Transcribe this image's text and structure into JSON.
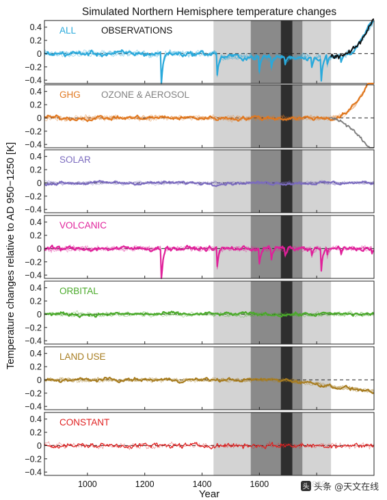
{
  "chart_data": {
    "type": "line",
    "title": "Simulated Northern Hemisphere temperature changes",
    "xlabel": "Year",
    "ylabel": "Temperature changes relative to AD 950−1250  [K]",
    "xlim": [
      850,
      2000
    ],
    "x_ticks": [
      "1000",
      "1200",
      "1400",
      "1600",
      "1800"
    ],
    "ylim": [
      -0.45,
      0.5
    ],
    "y_ticks": [
      "0.4",
      "0.2",
      "0",
      "−0.2",
      "−0.4"
    ],
    "shaded_periods": [
      {
        "start": 1440,
        "end": 1850,
        "shade": "#d3d3d3"
      },
      {
        "start": 1570,
        "end": 1750,
        "shade": "#8a8a8a"
      },
      {
        "start": 1675,
        "end": 1715,
        "shade": "#2e2e2e"
      }
    ],
    "zero_line": "dashed",
    "panels": [
      {
        "label": "ALL",
        "color": "#29a9db",
        "second_label": "OBSERVATIONS",
        "second_color": "#111111",
        "series_note": "all forcings ensemble; observations (black) from 1850"
      },
      {
        "label": "GHG",
        "color": "#e07820",
        "second_label": "OZONE & AEROSOL",
        "second_color": "#808080",
        "series_note": "greenhouse gases; ozone & aerosol (grey) from 1850"
      },
      {
        "label": "SOLAR",
        "color": "#7b6bbf"
      },
      {
        "label": "VOLCANIC",
        "color": "#e0209a"
      },
      {
        "label": "ORBITAL",
        "color": "#4aaa2a"
      },
      {
        "label": "LAND USE",
        "color": "#a77c1f"
      },
      {
        "label": "CONSTANT",
        "color": "#e02020"
      }
    ]
  },
  "watermark": {
    "icon": "toutiao-logo-icon",
    "text": "头条 @天文在线"
  }
}
